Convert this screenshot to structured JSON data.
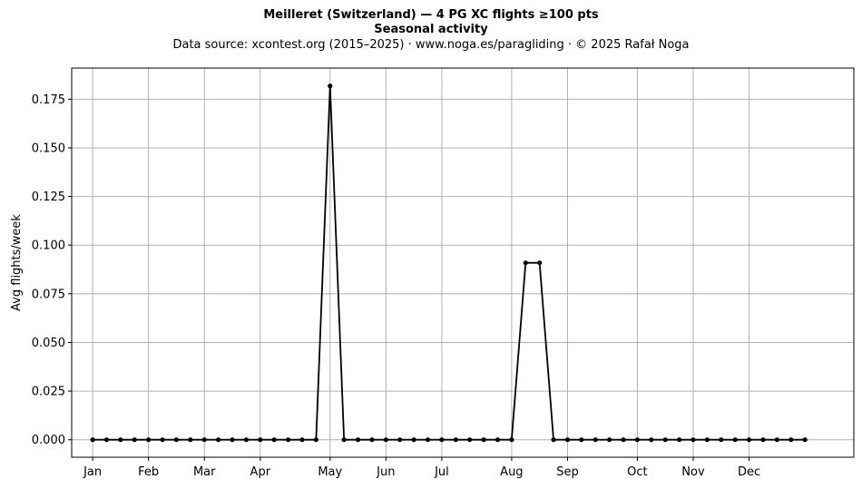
{
  "title": {
    "line1": "Meilleret (Switzerland)  —  4 PG XC flights ≥100 pts",
    "line2": "Seasonal activity",
    "line3": "Data source: xcontest.org (2015–2025)  ·  www.noga.es/paragliding  ·  © 2025 Rafał Noga"
  },
  "chart_data": {
    "type": "line",
    "title": "Meilleret (Switzerland)  —  4 PG XC flights ≥100 pts",
    "subtitle": "Seasonal activity",
    "xlabel": "",
    "ylabel": "Avg flights/week",
    "x_unit": "week of year",
    "ylim": [
      -0.009,
      0.191
    ],
    "xlim": [
      -1.5,
      54.5
    ],
    "grid": true,
    "legend": "none",
    "x_ticks": [
      {
        "label": "Jan",
        "x": 0
      },
      {
        "label": "Feb",
        "x": 4
      },
      {
        "label": "Mar",
        "x": 8
      },
      {
        "label": "Apr",
        "x": 12
      },
      {
        "label": "May",
        "x": 17
      },
      {
        "label": "Jun",
        "x": 21
      },
      {
        "label": "Jul",
        "x": 25
      },
      {
        "label": "Aug",
        "x": 30
      },
      {
        "label": "Sep",
        "x": 34
      },
      {
        "label": "Oct",
        "x": 39
      },
      {
        "label": "Nov",
        "x": 43
      },
      {
        "label": "Dec",
        "x": 47
      }
    ],
    "y_ticks": [
      0.0,
      0.025,
      0.05,
      0.075,
      0.1,
      0.125,
      0.15,
      0.175
    ],
    "y_tick_labels": [
      "0.000",
      "0.025",
      "0.050",
      "0.075",
      "0.100",
      "0.125",
      "0.150",
      "0.175"
    ],
    "series": [
      {
        "color": "#000000",
        "x": [
          0,
          1,
          2,
          3,
          4,
          5,
          6,
          7,
          8,
          9,
          10,
          11,
          12,
          13,
          14,
          15,
          16,
          17,
          18,
          19,
          20,
          21,
          22,
          23,
          24,
          25,
          26,
          27,
          28,
          29,
          30,
          31,
          32,
          33,
          34,
          35,
          36,
          37,
          38,
          39,
          40,
          41,
          42,
          43,
          44,
          45,
          46,
          47,
          48,
          49,
          50,
          51
        ],
        "values": [
          0,
          0,
          0,
          0,
          0,
          0,
          0,
          0,
          0,
          0,
          0,
          0,
          0,
          0,
          0,
          0,
          0,
          0.1818,
          0,
          0,
          0,
          0,
          0,
          0,
          0,
          0,
          0,
          0,
          0,
          0,
          0,
          0.0909,
          0.0909,
          0,
          0,
          0,
          0,
          0,
          0,
          0,
          0,
          0,
          0,
          0,
          0,
          0,
          0,
          0,
          0,
          0,
          0,
          0
        ]
      }
    ]
  }
}
